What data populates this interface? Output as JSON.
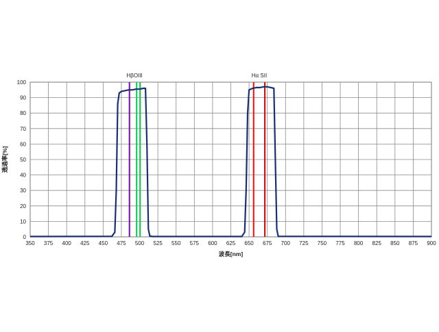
{
  "chart_data": {
    "type": "line",
    "title": "",
    "xlabel": "波長[nm]",
    "ylabel": "透過率[%]",
    "xlim": [
      350,
      900
    ],
    "ylim": [
      0,
      100
    ],
    "x_ticks": [
      350,
      375,
      400,
      425,
      450,
      475,
      500,
      525,
      550,
      575,
      600,
      625,
      650,
      675,
      700,
      725,
      750,
      775,
      800,
      825,
      850,
      875,
      900
    ],
    "y_ticks": [
      0,
      10,
      20,
      30,
      40,
      50,
      60,
      70,
      80,
      90,
      100
    ],
    "grid": true,
    "series": [
      {
        "color": "#1a2f6b",
        "x": [
          350,
          462,
          466,
          468,
          470,
          472,
          475,
          480,
          485,
          490,
          495,
          500,
          505,
          508,
          510,
          512,
          514,
          518,
          640,
          644,
          646,
          648,
          650,
          655,
          660,
          665,
          670,
          675,
          680,
          684,
          686,
          688,
          690,
          900
        ],
        "y": [
          0.2,
          0.3,
          3,
          30,
          86,
          93,
          94,
          94.5,
          95,
          95,
          95.5,
          95.5,
          96,
          96,
          60,
          5,
          0.5,
          0.2,
          0.2,
          3,
          30,
          80,
          95,
          96,
          96.5,
          96.5,
          97,
          97,
          96.5,
          96,
          50,
          5,
          0.3,
          0.2
        ]
      }
    ],
    "emission_lines": [
      {
        "wavelength": 486.1,
        "color": "#7b1fa2"
      },
      {
        "wavelength": 495.9,
        "color": "#22c55e"
      },
      {
        "wavelength": 500.7,
        "color": "#22c55e"
      },
      {
        "wavelength": 656.3,
        "color": "#e02020"
      },
      {
        "wavelength": 671.6,
        "color": "#c01818"
      }
    ],
    "line_labels": [
      {
        "text": "HβOIII",
        "wavelength": 493
      },
      {
        "text": "Hα  SII",
        "wavelength": 664
      }
    ]
  }
}
